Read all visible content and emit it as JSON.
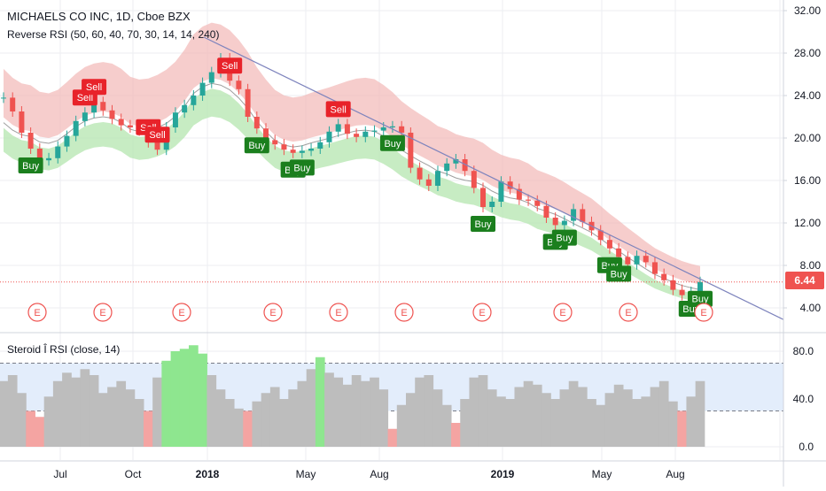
{
  "header": {
    "symbol_line": "MICHAELS CO INC, 1D, Cboe BZX",
    "indicator1": "Reverse RSI (50, 60, 40, 70, 30, 14, 14, 240)",
    "indicator2": "Steroid Î RSI (close, 14)"
  },
  "last_price": "6.44",
  "colors": {
    "candle_up": "#26a69a",
    "candle_down": "#ef5350",
    "upper_band": "#f2b8b6",
    "lower_band": "#b9e7b4",
    "trendline": "#7e84bd",
    "buy": "#1b7f1e",
    "sell": "#e8232a",
    "rsi_fill": "#bdbdbd",
    "rsi_zone": "#e3edfb",
    "rsi_ob": "#8ee68f",
    "rsi_os": "#f4a4a2",
    "earnings": "#ef5350"
  },
  "chart_data": [
    {
      "type": "line",
      "title": "MICHAELS CO INC, 1D, Cboe BZX",
      "x_tick_labels": [
        "Jul",
        "Oct",
        "2018",
        "May",
        "Aug",
        "2019",
        "May",
        "Aug"
      ],
      "y_tick_labels": [
        "32.00",
        "28.00",
        "24.00",
        "20.00",
        "16.00",
        "12.00",
        "8.00",
        "4.00"
      ],
      "ylim": [
        2.0,
        33.0
      ],
      "grid": true,
      "series": [
        {
          "values": [
            23.8,
            22.5,
            20.5,
            19.0,
            17.9,
            18.1,
            19.2,
            20.2,
            21.6,
            22.4,
            23.4,
            22.6,
            21.8,
            21.2,
            21.0,
            20.7,
            19.6,
            18.9,
            21.0,
            22.4,
            23.1,
            24.0,
            25.2,
            26.2,
            27.5,
            25.4,
            24.6,
            22.0,
            20.9,
            19.8,
            19.4,
            18.9,
            18.6,
            18.8,
            19.0,
            19.6,
            20.6,
            21.3,
            20.4,
            20.1,
            20.6,
            20.7,
            21.0,
            21.1,
            20.5,
            17.2,
            16.1,
            15.5,
            16.9,
            17.6,
            18.0,
            16.9,
            15.3,
            13.5,
            14.0,
            15.9,
            15.2,
            14.2,
            14.1,
            13.6,
            12.5,
            11.8,
            12.2,
            13.3,
            12.1,
            11.3,
            10.4,
            9.6,
            8.8,
            8.1,
            8.9,
            8.3,
            7.2,
            6.6,
            5.7,
            5.2,
            5.5,
            6.44
          ]
        }
      ],
      "trendline": {
        "start": {
          "x": "2017-Dec",
          "y": 29.5
        },
        "end": {
          "x": "2019-Oct",
          "y": 5.5
        }
      },
      "signals": [
        {
          "label": "Buy",
          "x": "Jun"
        },
        {
          "label": "Sell",
          "x": "Aug"
        },
        {
          "label": "Sell",
          "x": "Aug"
        },
        {
          "label": "Sell",
          "x": "Nov"
        },
        {
          "label": "Sell",
          "x": "Nov"
        },
        {
          "label": "Sell",
          "x": "2018"
        },
        {
          "label": "Buy",
          "x": "Feb"
        },
        {
          "label": "Buy",
          "x": "Apr"
        },
        {
          "label": "Buy",
          "x": "Apr"
        },
        {
          "label": "Sell",
          "x": "Jun"
        },
        {
          "label": "Buy",
          "x": "Sep"
        },
        {
          "label": "Buy",
          "x": "Dec"
        },
        {
          "label": "Buy",
          "x": "Mar"
        },
        {
          "label": "Buy",
          "x": "Mar"
        },
        {
          "label": "Buy",
          "x": "Jun"
        },
        {
          "label": "Buy",
          "x": "Jun"
        },
        {
          "label": "Buy",
          "x": "Sep"
        },
        {
          "label": "Buy",
          "x": "Sep"
        }
      ],
      "earnings_label": "E",
      "earnings_count": 10
    },
    {
      "type": "area",
      "title": "Steroid Î RSI (close, 14)",
      "y_tick_labels": [
        "80.0",
        "40.0",
        "0.0"
      ],
      "ylim": [
        -5,
        95
      ],
      "levels": [
        70,
        30
      ],
      "grid": true,
      "series": [
        {
          "values": [
            55,
            60,
            45,
            30,
            25,
            42,
            55,
            62,
            58,
            65,
            60,
            45,
            50,
            55,
            48,
            40,
            30,
            58,
            72,
            80,
            82,
            85,
            78,
            60,
            48,
            40,
            32,
            30,
            38,
            45,
            50,
            40,
            48,
            55,
            65,
            75,
            62,
            58,
            52,
            60,
            55,
            58,
            48,
            15,
            35,
            45,
            58,
            60,
            48,
            35,
            20,
            40,
            58,
            60,
            48,
            42,
            40,
            50,
            55,
            52,
            45,
            40,
            48,
            55,
            50,
            40,
            35,
            45,
            52,
            48,
            40,
            42,
            50,
            55,
            38,
            30,
            42,
            55
          ]
        }
      ]
    }
  ]
}
